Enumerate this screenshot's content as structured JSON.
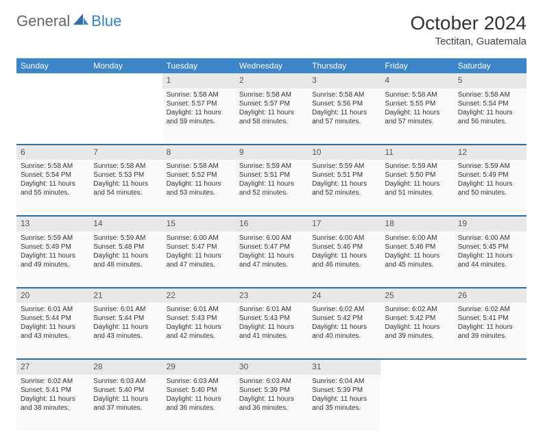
{
  "brand": {
    "part1": "General",
    "part2": "Blue"
  },
  "title": "October 2024",
  "location": "Tectitan, Guatemala",
  "colors": {
    "header_bg": "#3d85c6",
    "header_text": "#ffffff",
    "daynum_bg": "#e8e8e8",
    "cell_bg": "#fafafa",
    "row_divider": "#2f6fa8",
    "page_bg": "#ffffff",
    "logo_blue": "#3d7fbf"
  },
  "typography": {
    "title_fontsize": 28,
    "location_fontsize": 15,
    "header_fontsize": 12,
    "daynum_fontsize": 12,
    "cell_fontsize": 10
  },
  "weekdays": [
    "Sunday",
    "Monday",
    "Tuesday",
    "Wednesday",
    "Thursday",
    "Friday",
    "Saturday"
  ],
  "weeks": [
    [
      null,
      null,
      {
        "n": "1",
        "sunrise": "Sunrise: 5:58 AM",
        "sunset": "Sunset: 5:57 PM",
        "d1": "Daylight: 11 hours",
        "d2": "and 59 minutes."
      },
      {
        "n": "2",
        "sunrise": "Sunrise: 5:58 AM",
        "sunset": "Sunset: 5:57 PM",
        "d1": "Daylight: 11 hours",
        "d2": "and 58 minutes."
      },
      {
        "n": "3",
        "sunrise": "Sunrise: 5:58 AM",
        "sunset": "Sunset: 5:56 PM",
        "d1": "Daylight: 11 hours",
        "d2": "and 57 minutes."
      },
      {
        "n": "4",
        "sunrise": "Sunrise: 5:58 AM",
        "sunset": "Sunset: 5:55 PM",
        "d1": "Daylight: 11 hours",
        "d2": "and 57 minutes."
      },
      {
        "n": "5",
        "sunrise": "Sunrise: 5:58 AM",
        "sunset": "Sunset: 5:54 PM",
        "d1": "Daylight: 11 hours",
        "d2": "and 56 minutes."
      }
    ],
    [
      {
        "n": "6",
        "sunrise": "Sunrise: 5:58 AM",
        "sunset": "Sunset: 5:54 PM",
        "d1": "Daylight: 11 hours",
        "d2": "and 55 minutes."
      },
      {
        "n": "7",
        "sunrise": "Sunrise: 5:58 AM",
        "sunset": "Sunset: 5:53 PM",
        "d1": "Daylight: 11 hours",
        "d2": "and 54 minutes."
      },
      {
        "n": "8",
        "sunrise": "Sunrise: 5:58 AM",
        "sunset": "Sunset: 5:52 PM",
        "d1": "Daylight: 11 hours",
        "d2": "and 53 minutes."
      },
      {
        "n": "9",
        "sunrise": "Sunrise: 5:59 AM",
        "sunset": "Sunset: 5:51 PM",
        "d1": "Daylight: 11 hours",
        "d2": "and 52 minutes."
      },
      {
        "n": "10",
        "sunrise": "Sunrise: 5:59 AM",
        "sunset": "Sunset: 5:51 PM",
        "d1": "Daylight: 11 hours",
        "d2": "and 52 minutes."
      },
      {
        "n": "11",
        "sunrise": "Sunrise: 5:59 AM",
        "sunset": "Sunset: 5:50 PM",
        "d1": "Daylight: 11 hours",
        "d2": "and 51 minutes."
      },
      {
        "n": "12",
        "sunrise": "Sunrise: 5:59 AM",
        "sunset": "Sunset: 5:49 PM",
        "d1": "Daylight: 11 hours",
        "d2": "and 50 minutes."
      }
    ],
    [
      {
        "n": "13",
        "sunrise": "Sunrise: 5:59 AM",
        "sunset": "Sunset: 5:49 PM",
        "d1": "Daylight: 11 hours",
        "d2": "and 49 minutes."
      },
      {
        "n": "14",
        "sunrise": "Sunrise: 5:59 AM",
        "sunset": "Sunset: 5:48 PM",
        "d1": "Daylight: 11 hours",
        "d2": "and 48 minutes."
      },
      {
        "n": "15",
        "sunrise": "Sunrise: 6:00 AM",
        "sunset": "Sunset: 5:47 PM",
        "d1": "Daylight: 11 hours",
        "d2": "and 47 minutes."
      },
      {
        "n": "16",
        "sunrise": "Sunrise: 6:00 AM",
        "sunset": "Sunset: 5:47 PM",
        "d1": "Daylight: 11 hours",
        "d2": "and 47 minutes."
      },
      {
        "n": "17",
        "sunrise": "Sunrise: 6:00 AM",
        "sunset": "Sunset: 5:46 PM",
        "d1": "Daylight: 11 hours",
        "d2": "and 46 minutes."
      },
      {
        "n": "18",
        "sunrise": "Sunrise: 6:00 AM",
        "sunset": "Sunset: 5:46 PM",
        "d1": "Daylight: 11 hours",
        "d2": "and 45 minutes."
      },
      {
        "n": "19",
        "sunrise": "Sunrise: 6:00 AM",
        "sunset": "Sunset: 5:45 PM",
        "d1": "Daylight: 11 hours",
        "d2": "and 44 minutes."
      }
    ],
    [
      {
        "n": "20",
        "sunrise": "Sunrise: 6:01 AM",
        "sunset": "Sunset: 5:44 PM",
        "d1": "Daylight: 11 hours",
        "d2": "and 43 minutes."
      },
      {
        "n": "21",
        "sunrise": "Sunrise: 6:01 AM",
        "sunset": "Sunset: 5:44 PM",
        "d1": "Daylight: 11 hours",
        "d2": "and 43 minutes."
      },
      {
        "n": "22",
        "sunrise": "Sunrise: 6:01 AM",
        "sunset": "Sunset: 5:43 PM",
        "d1": "Daylight: 11 hours",
        "d2": "and 42 minutes."
      },
      {
        "n": "23",
        "sunrise": "Sunrise: 6:01 AM",
        "sunset": "Sunset: 5:43 PM",
        "d1": "Daylight: 11 hours",
        "d2": "and 41 minutes."
      },
      {
        "n": "24",
        "sunrise": "Sunrise: 6:02 AM",
        "sunset": "Sunset: 5:42 PM",
        "d1": "Daylight: 11 hours",
        "d2": "and 40 minutes."
      },
      {
        "n": "25",
        "sunrise": "Sunrise: 6:02 AM",
        "sunset": "Sunset: 5:42 PM",
        "d1": "Daylight: 11 hours",
        "d2": "and 39 minutes."
      },
      {
        "n": "26",
        "sunrise": "Sunrise: 6:02 AM",
        "sunset": "Sunset: 5:41 PM",
        "d1": "Daylight: 11 hours",
        "d2": "and 39 minutes."
      }
    ],
    [
      {
        "n": "27",
        "sunrise": "Sunrise: 6:02 AM",
        "sunset": "Sunset: 5:41 PM",
        "d1": "Daylight: 11 hours",
        "d2": "and 38 minutes."
      },
      {
        "n": "28",
        "sunrise": "Sunrise: 6:03 AM",
        "sunset": "Sunset: 5:40 PM",
        "d1": "Daylight: 11 hours",
        "d2": "and 37 minutes."
      },
      {
        "n": "29",
        "sunrise": "Sunrise: 6:03 AM",
        "sunset": "Sunset: 5:40 PM",
        "d1": "Daylight: 11 hours",
        "d2": "and 36 minutes."
      },
      {
        "n": "30",
        "sunrise": "Sunrise: 6:03 AM",
        "sunset": "Sunset: 5:39 PM",
        "d1": "Daylight: 11 hours",
        "d2": "and 36 minutes."
      },
      {
        "n": "31",
        "sunrise": "Sunrise: 6:04 AM",
        "sunset": "Sunset: 5:39 PM",
        "d1": "Daylight: 11 hours",
        "d2": "and 35 minutes."
      },
      null,
      null
    ]
  ]
}
